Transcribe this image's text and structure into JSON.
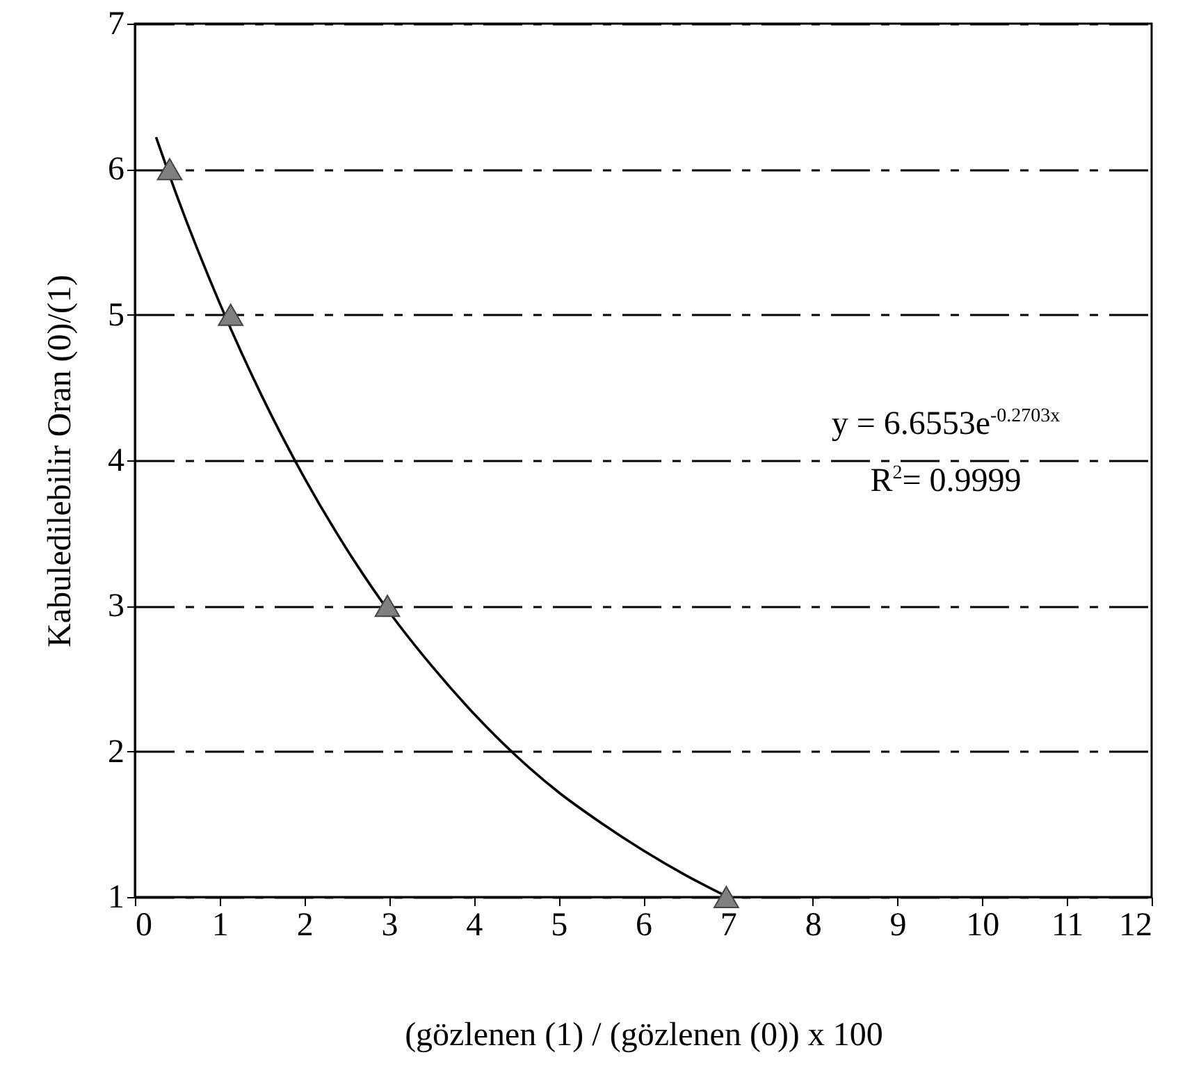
{
  "chart_data": {
    "type": "scatter",
    "xlabel": "(gözlenen (1) / (gözlenen (0)) x 100",
    "ylabel": "Kabuledilebilir Oran (0)/(1)",
    "annotations": [
      "y = 6.6553e$^{-0.2703x}$",
      "R$^{2}$= 0.9999"
    ],
    "series": [
      {
        "color": "#808080",
        "marker": "triangle",
        "x": [
          0.41,
          1.13,
          2.98,
          6.98
        ],
        "values": [
          6,
          5,
          3,
          1
        ]
      },
      {
        "type": "line",
        "color": "#000000",
        "marker": "none",
        "line_style": "solid",
        "x": [
          0.25,
          0.5,
          1,
          1.5,
          2,
          2.5,
          3,
          3.5,
          4,
          4.5,
          5,
          5.5,
          6,
          6.5,
          7
        ],
        "values": [
          6.22,
          5.81,
          5.08,
          4.44,
          3.88,
          3.39,
          2.96,
          2.59,
          2.26,
          1.97,
          1.72,
          1.51,
          1.32,
          1.15,
          1.0
        ]
      }
    ],
    "xlim": [
      0,
      12
    ],
    "xticks": [
      0,
      1,
      2,
      3,
      4,
      5,
      6,
      7,
      8,
      9,
      10,
      11,
      12
    ],
    "ylim": [
      1,
      7
    ],
    "yticks": [
      1,
      2,
      3,
      4,
      5,
      6,
      7
    ],
    "grid": "y"
  }
}
